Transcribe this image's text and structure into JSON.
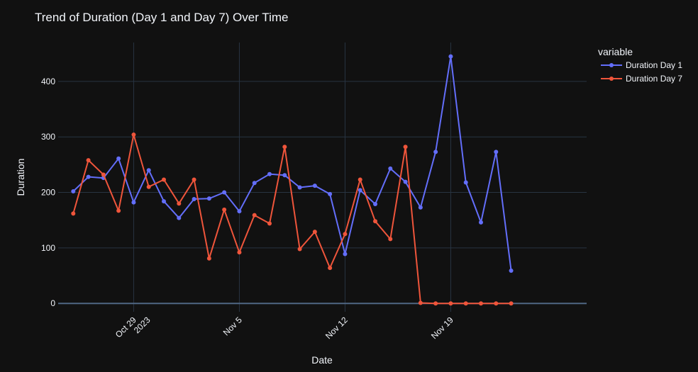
{
  "chart_data": {
    "type": "line",
    "title": "Trend of Duration (Day 1 and Day 7) Over Time",
    "xlabel": "Date",
    "ylabel": "Duration",
    "ylim": [
      -15,
      470
    ],
    "xlim": [
      "2023-10-24",
      "2023-11-28"
    ],
    "grid": true,
    "legend_title": "variable",
    "legend_position": "top-right",
    "y_ticks": [
      0,
      100,
      200,
      300,
      400
    ],
    "x_ticks": [
      {
        "date": "2023-10-29",
        "label": "Oct 29",
        "sublabel": "2023"
      },
      {
        "date": "2023-11-05",
        "label": "Nov 5",
        "sublabel": ""
      },
      {
        "date": "2023-11-12",
        "label": "Nov 12",
        "sublabel": ""
      },
      {
        "date": "2023-11-19",
        "label": "Nov 19",
        "sublabel": ""
      }
    ],
    "x": [
      "2023-10-25",
      "2023-10-26",
      "2023-10-27",
      "2023-10-28",
      "2023-10-29",
      "2023-10-30",
      "2023-10-31",
      "2023-11-01",
      "2023-11-02",
      "2023-11-03",
      "2023-11-04",
      "2023-11-05",
      "2023-11-06",
      "2023-11-07",
      "2023-11-08",
      "2023-11-09",
      "2023-11-10",
      "2023-11-11",
      "2023-11-12",
      "2023-11-13",
      "2023-11-14",
      "2023-11-15",
      "2023-11-16",
      "2023-11-17",
      "2023-11-18",
      "2023-11-19",
      "2023-11-20",
      "2023-11-21",
      "2023-11-22",
      "2023-11-23"
    ],
    "series": [
      {
        "name": "Duration Day 1",
        "color": "#636efa",
        "values": [
          202,
          228,
          226,
          261,
          182,
          240,
          184,
          154,
          188,
          189,
          200,
          166,
          217,
          233,
          231,
          209,
          212,
          197,
          89,
          204,
          179,
          243,
          219,
          173,
          273,
          445,
          218,
          146,
          273,
          59
        ]
      },
      {
        "name": "Duration Day 7",
        "color": "#ef553b",
        "values": [
          162,
          258,
          232,
          167,
          304,
          210,
          223,
          180,
          223,
          81,
          169,
          92,
          159,
          144,
          282,
          98,
          129,
          64,
          125,
          223,
          148,
          116,
          282,
          1,
          0,
          0,
          0,
          0,
          0,
          0
        ]
      }
    ]
  }
}
